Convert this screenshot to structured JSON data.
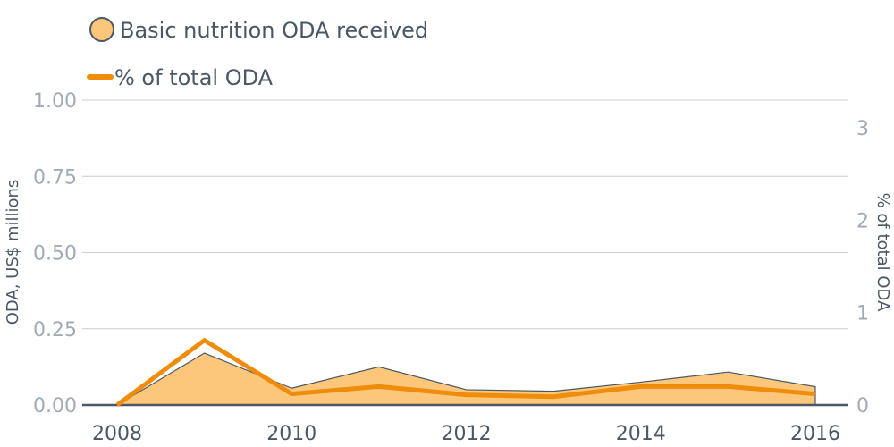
{
  "chart_data": {
    "type": "area",
    "x": [
      2008,
      2009,
      2010,
      2011,
      2012,
      2013,
      2014,
      2015,
      2016
    ],
    "series": [
      {
        "name": "Basic nutrition ODA received",
        "kind": "area",
        "axis": "left",
        "values": [
          0.0,
          0.17,
          0.055,
          0.125,
          0.05,
          0.045,
          0.075,
          0.108,
          0.06
        ]
      },
      {
        "name": "% of total ODA",
        "kind": "line",
        "axis": "right",
        "values": [
          0.0,
          0.7,
          0.12,
          0.2,
          0.11,
          0.09,
          0.2,
          0.2,
          0.12
        ]
      }
    ],
    "ylabel": "ODA, US$ millions",
    "y2label": "% of total ODA",
    "ylim": [
      0,
      1.0
    ],
    "y2lim": [
      0,
      3.3
    ],
    "yticks": [
      "0.00",
      "0.25",
      "0.50",
      "0.75",
      "1.00"
    ],
    "y2ticks": [
      "0",
      "1",
      "2",
      "3"
    ],
    "xticks": [
      "2008",
      "2010",
      "2012",
      "2014",
      "2016"
    ],
    "grid": true,
    "legend_position": "top-left",
    "colors": {
      "area_fill": "#fcc77a",
      "area_stroke": "#4a5866",
      "line": "#ef8c0b",
      "grid": "#c9cdd4",
      "baseline": "#4a5866"
    }
  }
}
